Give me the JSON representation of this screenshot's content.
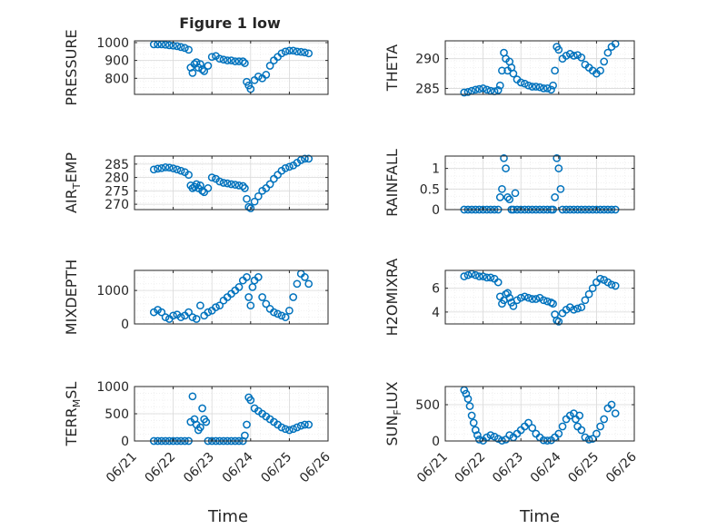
{
  "figure": {
    "title": "Figure 1 low",
    "series_color": "#0072BD",
    "axis_color": "#262626",
    "grid_color": "#d9d9d9",
    "xlabel": "Time",
    "xtick_labels": [
      "06/21",
      "06/22",
      "06/23",
      "06/24",
      "06/25",
      "06/26"
    ]
  },
  "chart_data": [
    {
      "type": "scatter",
      "title": "Figure 1 low",
      "ylabel": "PRESSURE",
      "xlabel": "",
      "x_unit": "day (June 2015)",
      "xlim": [
        21,
        26
      ],
      "ylim": [
        710,
        1010
      ],
      "yticks": [
        800,
        900,
        1000
      ],
      "grid": true,
      "markers": "open-circle",
      "x": [
        21.5,
        21.6,
        21.7,
        21.8,
        21.9,
        22.0,
        22.1,
        22.2,
        22.3,
        22.4,
        22.45,
        22.5,
        22.55,
        22.6,
        22.65,
        22.7,
        22.75,
        22.8,
        22.9,
        23.0,
        23.1,
        23.2,
        23.3,
        23.4,
        23.5,
        23.6,
        23.7,
        23.8,
        23.85,
        23.9,
        23.95,
        24.0,
        24.1,
        24.2,
        24.3,
        24.4,
        24.5,
        24.6,
        24.7,
        24.8,
        24.9,
        25.0,
        25.1,
        25.2,
        25.3,
        25.4,
        25.5
      ],
      "y": [
        990,
        990,
        990,
        988,
        985,
        983,
        980,
        975,
        970,
        960,
        860,
        830,
        880,
        890,
        860,
        880,
        850,
        840,
        870,
        920,
        925,
        910,
        905,
        900,
        900,
        895,
        895,
        895,
        885,
        780,
        760,
        740,
        790,
        810,
        800,
        820,
        870,
        900,
        920,
        940,
        950,
        955,
        955,
        950,
        948,
        945,
        940
      ]
    },
    {
      "type": "scatter",
      "title": "",
      "ylabel": "THETA",
      "xlabel": "",
      "x_unit": "day (June 2015)",
      "xlim": [
        21,
        26
      ],
      "ylim": [
        284,
        293
      ],
      "yticks": [
        285,
        290
      ],
      "grid": true,
      "markers": "open-circle",
      "x": [
        21.5,
        21.6,
        21.7,
        21.8,
        21.9,
        22.0,
        22.1,
        22.2,
        22.3,
        22.4,
        22.45,
        22.5,
        22.55,
        22.6,
        22.65,
        22.7,
        22.75,
        22.8,
        22.9,
        23.0,
        23.1,
        23.2,
        23.3,
        23.4,
        23.5,
        23.6,
        23.7,
        23.8,
        23.85,
        23.9,
        23.95,
        24.0,
        24.1,
        24.2,
        24.3,
        24.4,
        24.5,
        24.6,
        24.7,
        24.8,
        24.9,
        25.0,
        25.1,
        25.2,
        25.3,
        25.4,
        25.5
      ],
      "y": [
        284.3,
        284.4,
        284.6,
        284.8,
        284.9,
        285.0,
        284.8,
        284.6,
        284.5,
        284.7,
        285.5,
        288,
        291,
        290,
        288,
        289.5,
        288.5,
        287.5,
        286.5,
        286.0,
        285.8,
        285.5,
        285.3,
        285.3,
        285.2,
        285.0,
        285.0,
        284.8,
        285.5,
        288,
        292,
        291.5,
        290,
        290.5,
        290.8,
        290.5,
        290.6,
        290.2,
        289,
        288.5,
        288,
        287.5,
        288,
        289.5,
        291,
        292,
        292.5
      ]
    },
    {
      "type": "scatter",
      "title": "",
      "ylabel": "AIR_TEMP",
      "xlabel": "",
      "x_unit": "day (June 2015)",
      "xlim": [
        21,
        26
      ],
      "ylim": [
        268,
        288
      ],
      "yticks": [
        270,
        275,
        280,
        285
      ],
      "grid": true,
      "markers": "open-circle",
      "x": [
        21.5,
        21.6,
        21.7,
        21.8,
        21.9,
        22.0,
        22.1,
        22.2,
        22.3,
        22.4,
        22.45,
        22.5,
        22.55,
        22.6,
        22.65,
        22.7,
        22.75,
        22.8,
        22.9,
        23.0,
        23.1,
        23.2,
        23.3,
        23.4,
        23.5,
        23.6,
        23.7,
        23.8,
        23.85,
        23.9,
        23.95,
        24.0,
        24.1,
        24.2,
        24.3,
        24.4,
        24.5,
        24.6,
        24.7,
        24.8,
        24.9,
        25.0,
        25.1,
        25.2,
        25.3,
        25.4,
        25.5
      ],
      "y": [
        283.0,
        283.3,
        283.5,
        283.8,
        283.7,
        283.4,
        283.0,
        282.5,
        282.0,
        281.0,
        277.0,
        276.0,
        276.5,
        277.5,
        276.0,
        277.0,
        275.0,
        274.5,
        276.0,
        280.0,
        279.5,
        278.5,
        278.0,
        277.8,
        277.5,
        277.3,
        277.0,
        276.8,
        276.0,
        272.0,
        269.0,
        268.5,
        271.0,
        273.0,
        275.0,
        276.0,
        277.5,
        279.5,
        281.0,
        282.5,
        283.5,
        284.0,
        284.5,
        285.5,
        286.5,
        287.0,
        287.0
      ]
    },
    {
      "type": "scatter",
      "title": "",
      "ylabel": "RAINFALL",
      "xlabel": "",
      "x_unit": "day (June 2015)",
      "xlim": [
        21,
        26
      ],
      "ylim": [
        0,
        1.3
      ],
      "yticks": [
        0,
        0.5,
        1
      ],
      "ytick_labels": [
        "0",
        "0.5",
        "1"
      ],
      "grid": true,
      "markers": "open-circle",
      "x": [
        21.5,
        21.6,
        21.7,
        21.8,
        21.9,
        22.0,
        22.1,
        22.2,
        22.3,
        22.4,
        22.45,
        22.5,
        22.55,
        22.6,
        22.65,
        22.7,
        22.75,
        22.8,
        22.85,
        22.9,
        23.0,
        23.1,
        23.2,
        23.3,
        23.4,
        23.5,
        23.6,
        23.7,
        23.8,
        23.85,
        23.9,
        23.95,
        24.0,
        24.05,
        24.1,
        24.2,
        24.3,
        24.4,
        24.5,
        24.6,
        24.7,
        24.8,
        24.9,
        25.0,
        25.1,
        25.2,
        25.3,
        25.4,
        25.5
      ],
      "y": [
        0,
        0,
        0,
        0,
        0,
        0,
        0,
        0,
        0,
        0,
        0.3,
        0.5,
        1.25,
        1.0,
        0.3,
        0.25,
        0,
        0,
        0.4,
        0,
        0,
        0,
        0,
        0,
        0,
        0,
        0,
        0,
        0,
        0,
        0.3,
        1.25,
        1.0,
        0.5,
        0,
        0,
        0,
        0,
        0,
        0,
        0,
        0,
        0,
        0,
        0,
        0,
        0,
        0,
        0
      ]
    },
    {
      "type": "scatter",
      "title": "",
      "ylabel": "MIXDEPTH",
      "xlabel": "",
      "x_unit": "day (June 2015)",
      "xlim": [
        21,
        26
      ],
      "ylim": [
        0,
        1600
      ],
      "yticks": [
        0,
        1000
      ],
      "grid": true,
      "markers": "open-circle",
      "x": [
        21.5,
        21.6,
        21.7,
        21.8,
        21.9,
        22.0,
        22.1,
        22.2,
        22.3,
        22.4,
        22.5,
        22.6,
        22.7,
        22.8,
        22.9,
        23.0,
        23.1,
        23.2,
        23.3,
        23.4,
        23.5,
        23.6,
        23.7,
        23.8,
        23.9,
        23.95,
        24.0,
        24.05,
        24.1,
        24.2,
        24.3,
        24.4,
        24.5,
        24.6,
        24.7,
        24.8,
        24.9,
        25.0,
        25.1,
        25.2,
        25.3,
        25.4,
        25.5
      ],
      "y": [
        350,
        420,
        350,
        200,
        150,
        250,
        280,
        200,
        250,
        350,
        200,
        150,
        550,
        250,
        350,
        400,
        500,
        550,
        700,
        800,
        900,
        1000,
        1100,
        1300,
        1400,
        800,
        550,
        1100,
        1300,
        1400,
        800,
        600,
        450,
        350,
        300,
        250,
        200,
        400,
        800,
        1200,
        1500,
        1400,
        1200
      ]
    },
    {
      "type": "scatter",
      "title": "",
      "ylabel": "H2OMIXRA",
      "xlabel": "",
      "x_unit": "day (June 2015)",
      "xlim": [
        21,
        26
      ],
      "ylim": [
        3,
        7.5
      ],
      "yticks": [
        4,
        6
      ],
      "grid": true,
      "markers": "open-circle",
      "x": [
        21.5,
        21.6,
        21.7,
        21.8,
        21.9,
        22.0,
        22.1,
        22.2,
        22.3,
        22.4,
        22.45,
        22.5,
        22.55,
        22.6,
        22.65,
        22.7,
        22.75,
        22.8,
        22.9,
        23.0,
        23.1,
        23.2,
        23.3,
        23.4,
        23.5,
        23.6,
        23.7,
        23.8,
        23.85,
        23.9,
        23.95,
        24.0,
        24.1,
        24.2,
        24.3,
        24.4,
        24.5,
        24.6,
        24.7,
        24.8,
        24.9,
        25.0,
        25.1,
        25.2,
        25.3,
        25.4,
        25.5
      ],
      "y": [
        7.0,
        7.1,
        7.2,
        7.1,
        7.0,
        7.0,
        6.9,
        6.9,
        6.8,
        6.5,
        5.3,
        4.7,
        5.0,
        5.5,
        5.6,
        5.2,
        4.8,
        4.5,
        5.0,
        5.2,
        5.3,
        5.2,
        5.1,
        5.1,
        5.2,
        5.0,
        4.9,
        4.8,
        4.7,
        3.8,
        3.3,
        3.2,
        3.9,
        4.2,
        4.4,
        4.2,
        4.3,
        4.4,
        5.0,
        5.5,
        6.0,
        6.5,
        6.8,
        6.7,
        6.5,
        6.3,
        6.2
      ]
    },
    {
      "type": "scatter",
      "title": "",
      "ylabel": "TERR_MSL",
      "xlabel": "Time",
      "x_unit": "day (June 2015)",
      "xlim": [
        21,
        26
      ],
      "xticks": [
        21,
        22,
        23,
        24,
        25,
        26
      ],
      "xtick_labels": [
        "06/21",
        "06/22",
        "06/23",
        "06/24",
        "06/25",
        "06/26"
      ],
      "ylim": [
        0,
        1000
      ],
      "yticks": [
        0,
        500,
        1000
      ],
      "grid": true,
      "markers": "open-circle",
      "x": [
        21.5,
        21.6,
        21.7,
        21.8,
        21.9,
        22.0,
        22.1,
        22.2,
        22.3,
        22.4,
        22.45,
        22.5,
        22.55,
        22.6,
        22.65,
        22.7,
        22.75,
        22.8,
        22.85,
        22.9,
        23.0,
        23.1,
        23.2,
        23.3,
        23.4,
        23.5,
        23.6,
        23.7,
        23.8,
        23.85,
        23.9,
        23.95,
        24.0,
        24.1,
        24.2,
        24.3,
        24.4,
        24.5,
        24.6,
        24.7,
        24.8,
        24.9,
        25.0,
        25.1,
        25.2,
        25.3,
        25.4,
        25.5
      ],
      "y": [
        0,
        0,
        0,
        0,
        0,
        0,
        0,
        0,
        0,
        0,
        350,
        820,
        400,
        300,
        200,
        250,
        600,
        400,
        350,
        0,
        0,
        0,
        0,
        0,
        0,
        0,
        0,
        0,
        0,
        100,
        300,
        800,
        750,
        600,
        550,
        500,
        450,
        400,
        350,
        300,
        250,
        220,
        200,
        220,
        250,
        280,
        300,
        300
      ]
    },
    {
      "type": "scatter",
      "title": "",
      "ylabel": "SUN_FLUX",
      "xlabel": "Time",
      "x_unit": "day (June 2015)",
      "xlim": [
        21,
        26
      ],
      "xticks": [
        21,
        22,
        23,
        24,
        25,
        26
      ],
      "xtick_labels": [
        "06/21",
        "06/22",
        "06/23",
        "06/24",
        "06/25",
        "06/26"
      ],
      "ylim": [
        0,
        750
      ],
      "yticks": [
        0,
        500
      ],
      "grid": true,
      "markers": "open-circle",
      "x": [
        21.5,
        21.55,
        21.6,
        21.65,
        21.7,
        21.75,
        21.8,
        21.85,
        21.9,
        22.0,
        22.1,
        22.2,
        22.3,
        22.4,
        22.5,
        22.6,
        22.7,
        22.8,
        22.9,
        23.0,
        23.1,
        23.2,
        23.3,
        23.4,
        23.5,
        23.6,
        23.7,
        23.8,
        23.9,
        24.0,
        24.1,
        24.2,
        24.3,
        24.4,
        24.45,
        24.5,
        24.55,
        24.6,
        24.7,
        24.8,
        24.9,
        25.0,
        25.1,
        25.2,
        25.3,
        25.4,
        25.5
      ],
      "y": [
        700,
        650,
        580,
        480,
        350,
        250,
        150,
        80,
        20,
        5,
        50,
        80,
        60,
        30,
        5,
        20,
        80,
        50,
        100,
        150,
        200,
        250,
        180,
        100,
        50,
        10,
        5,
        10,
        50,
        100,
        200,
        300,
        350,
        380,
        300,
        200,
        350,
        150,
        50,
        20,
        30,
        100,
        200,
        300,
        450,
        500,
        380
      ]
    }
  ]
}
